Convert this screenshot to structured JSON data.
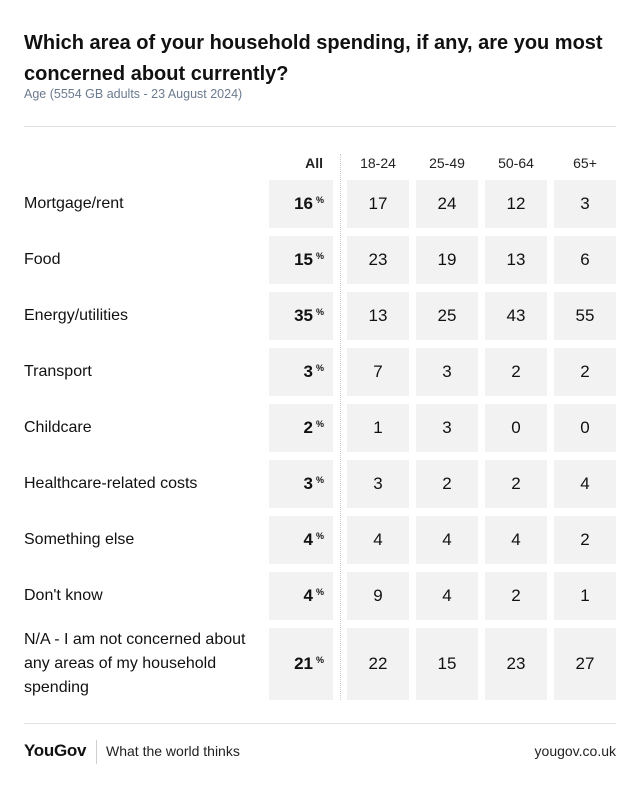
{
  "title": "Which area of your household spending, if any, are you most concerned about currently?",
  "subtitle": "Age (5554 GB adults - 23 August 2024)",
  "footer": {
    "logo": "YouGov",
    "tagline": "What the world thinks",
    "url": "yougov.co.uk"
  },
  "chart_data": {
    "type": "table",
    "title": "Which area of your household spending, if any, are you most concerned about currently?",
    "subtitle": "Age (5554 GB adults - 23 August 2024)",
    "columns": [
      "All",
      "18-24",
      "25-49",
      "50-64",
      "65+"
    ],
    "unit_symbol": "%",
    "rows": [
      {
        "label": "Mortgage/rent",
        "values": [
          16,
          17,
          24,
          12,
          3
        ]
      },
      {
        "label": "Food",
        "values": [
          15,
          23,
          19,
          13,
          6
        ]
      },
      {
        "label": "Energy/utilities",
        "values": [
          35,
          13,
          25,
          43,
          55
        ]
      },
      {
        "label": "Transport",
        "values": [
          3,
          7,
          3,
          2,
          2
        ]
      },
      {
        "label": "Childcare",
        "values": [
          2,
          1,
          3,
          0,
          0
        ]
      },
      {
        "label": "Healthcare-related costs",
        "values": [
          3,
          3,
          2,
          2,
          4
        ]
      },
      {
        "label": "Something else",
        "values": [
          4,
          4,
          4,
          4,
          2
        ]
      },
      {
        "label": "Don't know",
        "values": [
          4,
          9,
          4,
          2,
          1
        ]
      },
      {
        "label": "N/A - I am not concerned about any areas of my household spending",
        "values": [
          21,
          22,
          15,
          23,
          27
        ]
      }
    ]
  }
}
